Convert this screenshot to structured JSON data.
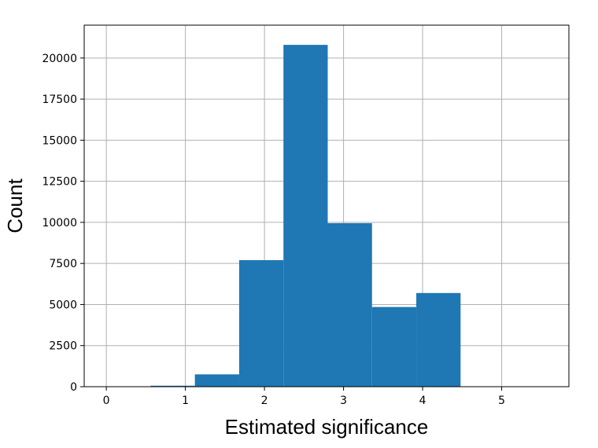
{
  "chart_data": {
    "type": "bar",
    "title": "",
    "xlabel": "Estimated significance",
    "ylabel": "Count",
    "xlim": [
      -0.28,
      5.85
    ],
    "ylim": [
      0,
      22000
    ],
    "xticks": [
      0,
      1,
      2,
      3,
      4,
      5
    ],
    "yticks": [
      0,
      2500,
      5000,
      7500,
      10000,
      12500,
      15000,
      17500,
      20000
    ],
    "grid": true,
    "bar_color": "#1f77b4",
    "bins": [
      {
        "x0": 0.0,
        "x1": 0.56,
        "count": 0
      },
      {
        "x0": 0.56,
        "x1": 1.12,
        "count": 60
      },
      {
        "x0": 1.12,
        "x1": 1.68,
        "count": 750
      },
      {
        "x0": 1.68,
        "x1": 2.24,
        "count": 7700
      },
      {
        "x0": 2.24,
        "x1": 2.8,
        "count": 20800
      },
      {
        "x0": 2.8,
        "x1": 3.36,
        "count": 9950
      },
      {
        "x0": 3.36,
        "x1": 3.92,
        "count": 4850
      },
      {
        "x0": 3.92,
        "x1": 4.48,
        "count": 5700
      },
      {
        "x0": 4.48,
        "x1": 5.04,
        "count": 0
      },
      {
        "x0": 5.04,
        "x1": 5.6,
        "count": 0
      }
    ]
  }
}
